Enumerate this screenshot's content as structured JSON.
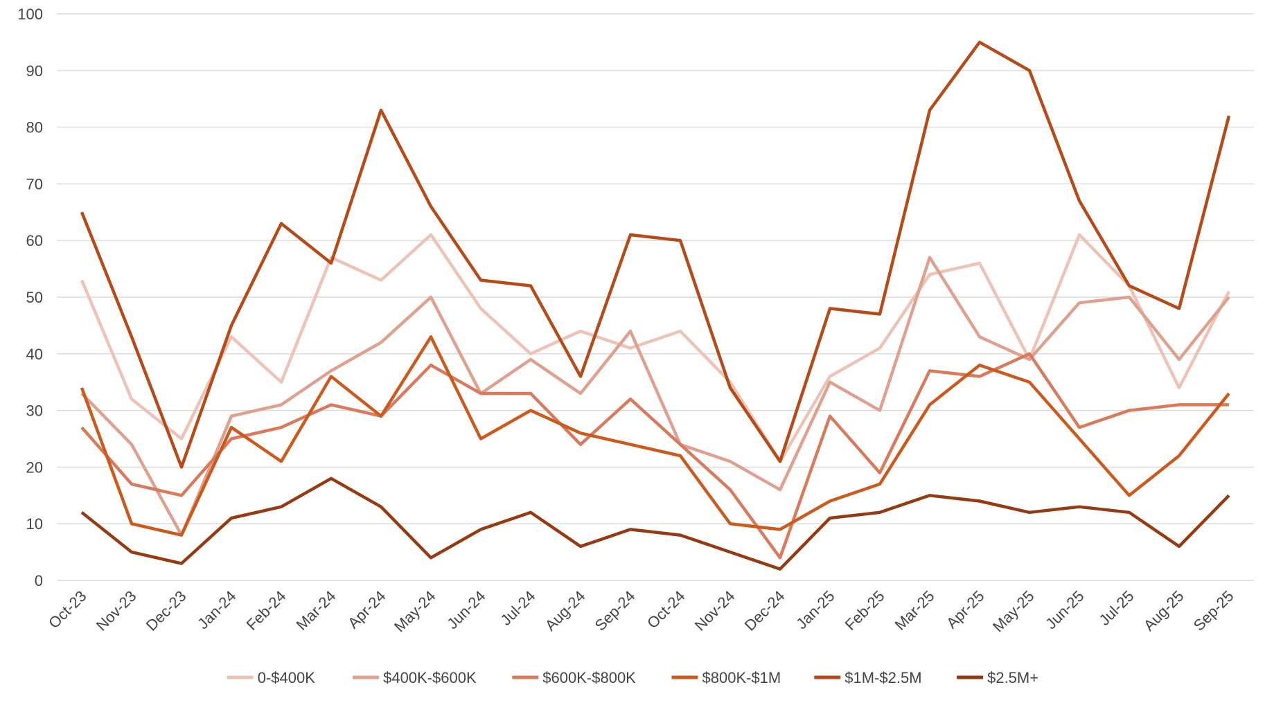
{
  "chart_data": {
    "type": "line",
    "title": "",
    "xlabel": "",
    "ylabel": "",
    "ylim": [
      0,
      100
    ],
    "yticks": [
      "0",
      "10",
      "20",
      "30",
      "40",
      "50",
      "60",
      "70",
      "80",
      "90",
      "100"
    ],
    "grid": true,
    "legend_position": "bottom",
    "categories": [
      "Oct-23",
      "Nov-23",
      "Dec-23",
      "Jan-24",
      "Feb-24",
      "Mar-24",
      "Apr-24",
      "May-24",
      "Jun-24",
      "Jul-24",
      "Aug-24",
      "Sep-24",
      "Oct-24",
      "Nov-24",
      "Dec-24",
      "Jan-25",
      "Feb-25",
      "Mar-25",
      "Apr-25",
      "May-25",
      "Jun-25",
      "Jul-25",
      "Aug-25",
      "Sep-25"
    ],
    "series": [
      {
        "name": "0-$400K",
        "color": "#edc3b6",
        "values": [
          53,
          32,
          25,
          43,
          35,
          57,
          53,
          61,
          48,
          40,
          44,
          41,
          44,
          35,
          21,
          36,
          41,
          54,
          56,
          39,
          61,
          52,
          34,
          51
        ]
      },
      {
        "name": "$400K-$600K",
        "color": "#e0a08e",
        "values": [
          33,
          24,
          8,
          29,
          31,
          37,
          42,
          50,
          33,
          39,
          33,
          44,
          24,
          21,
          16,
          35,
          30,
          57,
          43,
          39,
          49,
          50,
          39,
          50
        ]
      },
      {
        "name": "$600K-$800K",
        "color": "#d97a5c",
        "values": [
          27,
          17,
          15,
          25,
          27,
          31,
          29,
          38,
          33,
          33,
          24,
          32,
          24,
          16,
          4,
          29,
          19,
          37,
          36,
          40,
          27,
          30,
          31,
          31
        ]
      },
      {
        "name": "$800K-$1M",
        "color": "#cd5a1d",
        "values": [
          34,
          10,
          8,
          27,
          21,
          36,
          29,
          43,
          25,
          30,
          26,
          24,
          22,
          10,
          9,
          14,
          17,
          31,
          38,
          35,
          25,
          15,
          22,
          33
        ]
      },
      {
        "name": "$1M-$2.5M",
        "color": "#b64a18",
        "values": [
          65,
          43,
          20,
          45,
          63,
          56,
          83,
          66,
          53,
          52,
          36,
          61,
          60,
          34,
          21,
          48,
          47,
          83,
          95,
          90,
          67,
          52,
          48,
          82
        ]
      },
      {
        "name": "$2.5M+",
        "color": "#963a12",
        "values": [
          12,
          5,
          3,
          11,
          13,
          18,
          13,
          4,
          9,
          12,
          6,
          9,
          8,
          5,
          2,
          11,
          12,
          15,
          14,
          12,
          13,
          12,
          6,
          15
        ]
      }
    ]
  }
}
